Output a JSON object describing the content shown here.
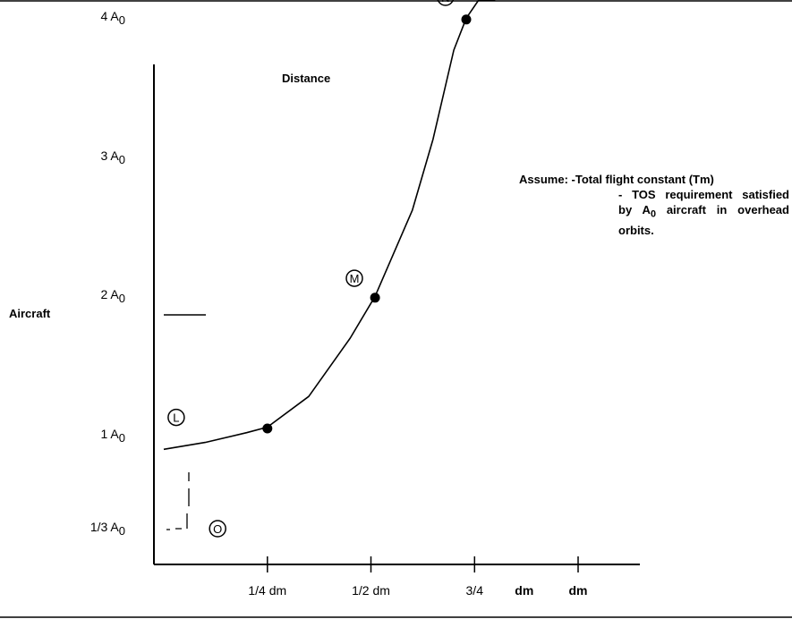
{
  "chart_data": {
    "type": "line",
    "title": "Distance",
    "ylabel": "Aircraft",
    "xlabel": "",
    "x_ticks": [
      {
        "label": "1/4 dm",
        "x": 0.25
      },
      {
        "label": "1/2 dm",
        "x": 0.5
      },
      {
        "label": "3/4",
        "x": 0.75
      },
      {
        "label": "dm",
        "x": 0.87
      },
      {
        "label": "dm",
        "x": 1.0
      }
    ],
    "y_ticks": [
      {
        "main": "4 A",
        "sub": "0",
        "y": 4
      },
      {
        "main": "3 A",
        "sub": "0",
        "y": 3
      },
      {
        "main": "2 A",
        "sub": "0",
        "y": 2
      },
      {
        "main": "1 A",
        "sub": "0",
        "y": 1
      },
      {
        "main": "1/3 A",
        "sub": "0",
        "y": 0.333
      }
    ],
    "xlim": [
      0,
      1.14
    ],
    "ylim": [
      0,
      4.5
    ],
    "series": [
      {
        "points": [
          [
            0.0,
            0.9
          ],
          [
            0.1,
            0.95
          ],
          [
            0.2,
            1.02
          ],
          [
            0.25,
            1.06
          ],
          [
            0.35,
            1.28
          ],
          [
            0.45,
            1.7
          ],
          [
            0.51,
            2.0
          ],
          [
            0.6,
            2.62
          ],
          [
            0.65,
            3.13
          ],
          [
            0.7,
            3.77
          ],
          [
            0.73,
            4.0
          ],
          [
            0.76,
            4.45
          ],
          [
            0.8,
            5.0
          ]
        ]
      }
    ],
    "marked_points": [
      {
        "x": 0.25,
        "y": 1.05
      },
      {
        "x": 0.51,
        "y": 1.99
      },
      {
        "x": 0.73,
        "y": 3.99
      }
    ],
    "point_labels": [
      {
        "letter": "N",
        "x": 0.68,
        "y": 4.15
      },
      {
        "letter": "M",
        "x": 0.46,
        "y": 2.13
      },
      {
        "letter": "L",
        "x": 0.03,
        "y": 1.13
      },
      {
        "letter": "O",
        "x": 0.13,
        "y": 0.33
      }
    ],
    "annotation": {
      "line1": "Assume: -Total flight constant (Tm)",
      "line2": "- TOS requirement satisfied",
      "line3_pre": "by A",
      "line3_sub": "0",
      "line3_post": " aircraft in overhead",
      "line4": "orbits."
    }
  }
}
